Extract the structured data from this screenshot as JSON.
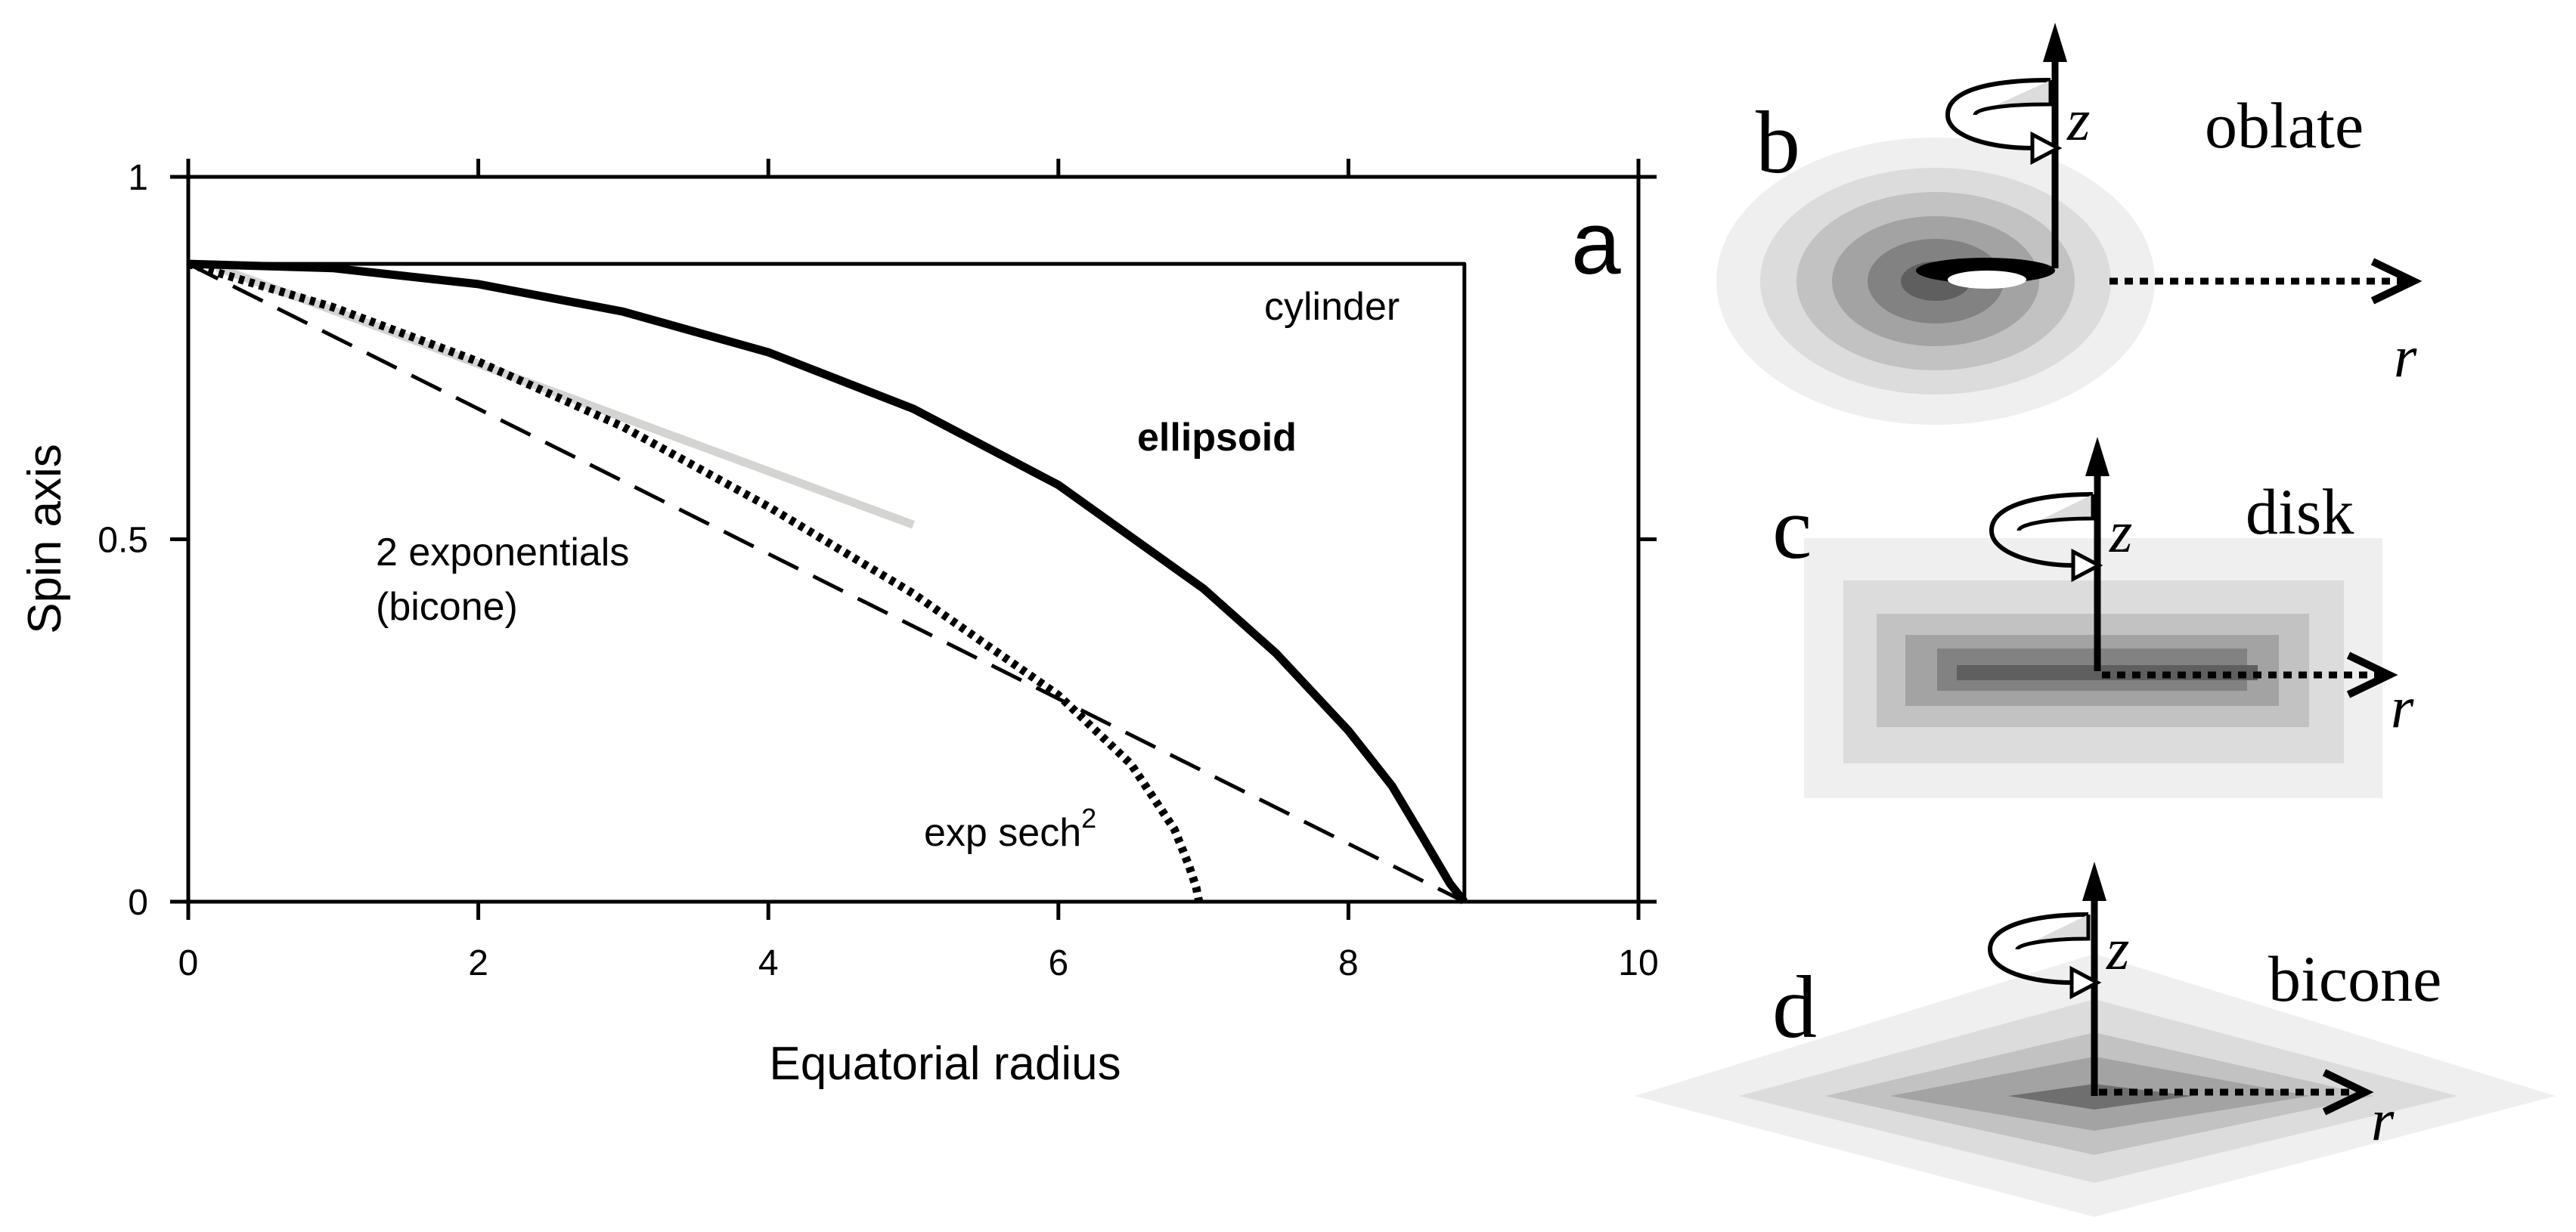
{
  "chart_data": {
    "type": "line",
    "panel_label": "a",
    "xlabel": "Equatorial radius",
    "ylabel": "Spin axis",
    "xlim": [
      0,
      10
    ],
    "ylim": [
      0,
      1
    ],
    "xticks": [
      "0",
      "2",
      "4",
      "6",
      "8",
      "10"
    ],
    "yticks": [
      "0",
      "0.5",
      "1"
    ],
    "grid": false,
    "series": [
      {
        "name": "cylinder",
        "style": "solid-thin",
        "color": "#000000",
        "x": [
          0,
          8.8,
          8.8
        ],
        "y": [
          0.88,
          0.88,
          0
        ]
      },
      {
        "name": "ellipsoid",
        "style": "solid-thick",
        "color": "#000000",
        "x": [
          0,
          1,
          2,
          3,
          4,
          5,
          6,
          7,
          7.5,
          8,
          8.3,
          8.5,
          8.7,
          8.8
        ],
        "y": [
          0.88,
          0.874,
          0.852,
          0.814,
          0.758,
          0.68,
          0.575,
          0.432,
          0.343,
          0.236,
          0.16,
          0.093,
          0.025,
          0
        ]
      },
      {
        "name": "2 exponentials (bicone)",
        "style": "dashed",
        "color": "#000000",
        "x": [
          0,
          8.8
        ],
        "y": [
          0.88,
          0
        ]
      },
      {
        "name": "exp sech2",
        "style": "dotted",
        "color": "#000000",
        "x": [
          0,
          1,
          2,
          3,
          4,
          5,
          6,
          6.5,
          6.8,
          6.9,
          6.95,
          6.97
        ],
        "y": [
          0.88,
          0.82,
          0.745,
          0.655,
          0.545,
          0.425,
          0.285,
          0.19,
          0.1,
          0.05,
          0.02,
          0
        ]
      },
      {
        "name": "",
        "style": "solid-gray",
        "color": "#d3d5d3",
        "x": [
          0.2,
          5
        ],
        "y": [
          0.875,
          0.52
        ]
      }
    ],
    "annotations": [
      {
        "id": "cylinder",
        "text": "cylinder"
      },
      {
        "id": "ellipsoid",
        "text": "ellipsoid"
      },
      {
        "id": "bicone",
        "lines": [
          "2 exponentials",
          "(bicone)"
        ]
      },
      {
        "id": "sech",
        "text": "exp sech",
        "superscript": "2"
      }
    ]
  },
  "panels": [
    {
      "label": "b",
      "shape_name": "oblate",
      "axis_z": "z",
      "axis_r": "r"
    },
    {
      "label": "c",
      "shape_name": "disk",
      "axis_z": "z",
      "axis_r": "r"
    },
    {
      "label": "d",
      "shape_name": "bicone",
      "axis_z": "z",
      "axis_r": "r"
    }
  ],
  "colors": {
    "shade_1": "#efefef",
    "shade_2": "#dcdcdc",
    "shade_3": "#c2c2c2",
    "shade_4": "#a3a3a3",
    "shade_5": "#828282",
    "shade_6": "#5f5f5f",
    "ink": "#000000"
  }
}
